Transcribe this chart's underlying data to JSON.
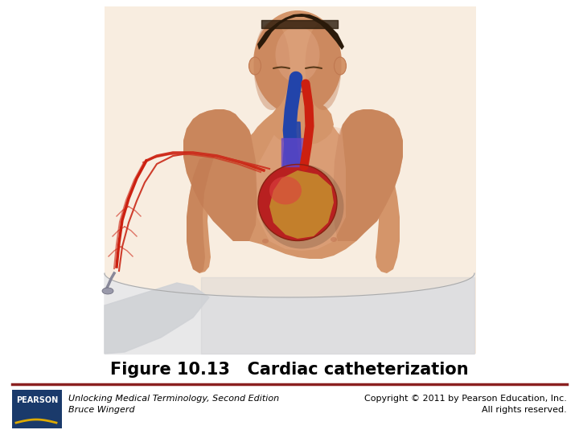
{
  "title": "Figure 10.13   Cardiac catheterization",
  "title_fontsize": 15,
  "title_fontweight": "bold",
  "bg_color": "#ffffff",
  "image_bg_color": "#f8ede0",
  "footer_line_color": "#8b2020",
  "pearson_box_color": "#1a3a6b",
  "pearson_text": "PEARSON",
  "left_footer_line1": "Unlocking Medical Terminology, Second Edition",
  "left_footer_line2": "Bruce Wingerd",
  "right_footer_line1": "Copyright © 2011 by Pearson Education, Inc.",
  "right_footer_line2": "All rights reserved.",
  "footer_fontsize": 8,
  "skin_color": "#d4956a",
  "skin_shadow": "#c07850",
  "skin_light": "#e8b090",
  "hair_color": "#2a1a0a",
  "sheet_color": "#e8e8ea",
  "sheet_shadow": "#c8c8cc",
  "heart_red": "#b82020",
  "heart_gold": "#c8a030",
  "artery_red": "#cc2010",
  "vein_blue": "#2244aa",
  "catheter_color": "#8899aa"
}
